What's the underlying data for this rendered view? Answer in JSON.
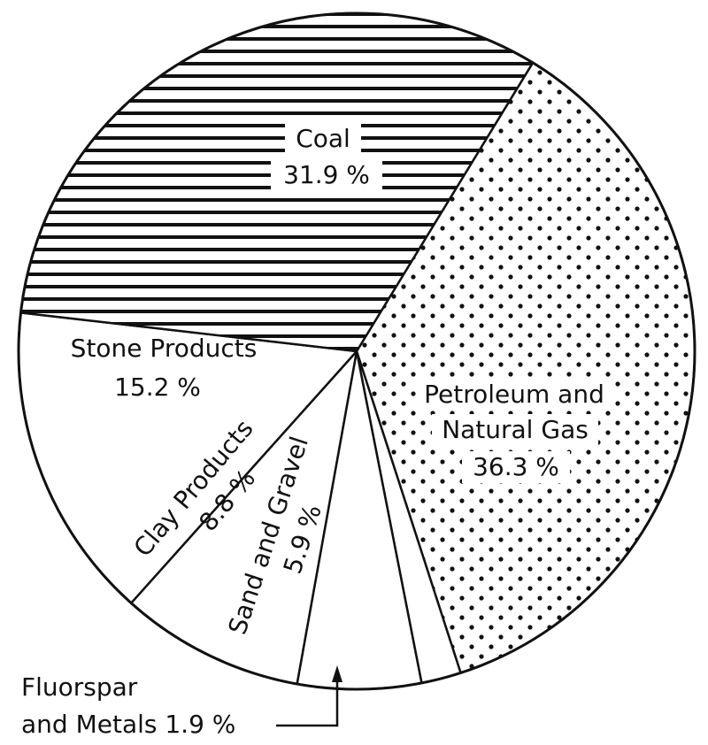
{
  "chart_data": {
    "type": "pie",
    "start_angle_deg": 31.4,
    "direction": "clockwise",
    "slices": [
      {
        "key": "petroleum",
        "label_lines": [
          "Petroleum and",
          "Natural Gas",
          "36.3 %"
        ],
        "value": 36.3,
        "fill": "dots"
      },
      {
        "key": "fluorspar",
        "label_lines": [
          "Fluorspar",
          "and Metals 1.9 %"
        ],
        "value": 1.9,
        "fill": "none"
      },
      {
        "key": "sand",
        "label_lines": [
          "Sand and Gravel",
          "5.9 %"
        ],
        "value": 5.9,
        "fill": "none"
      },
      {
        "key": "clay",
        "label_lines": [
          "Clay Products",
          "8.8 %"
        ],
        "value": 8.8,
        "fill": "none"
      },
      {
        "key": "stone",
        "label_lines": [
          "Stone Products",
          "15.2 %"
        ],
        "value": 15.2,
        "fill": "none"
      },
      {
        "key": "coal",
        "label_lines": [
          "Coal",
          "31.9 %"
        ],
        "value": 31.9,
        "fill": "horizontal-hatch"
      }
    ],
    "colors": {
      "ink": "#111111",
      "background": "#ffffff"
    }
  }
}
